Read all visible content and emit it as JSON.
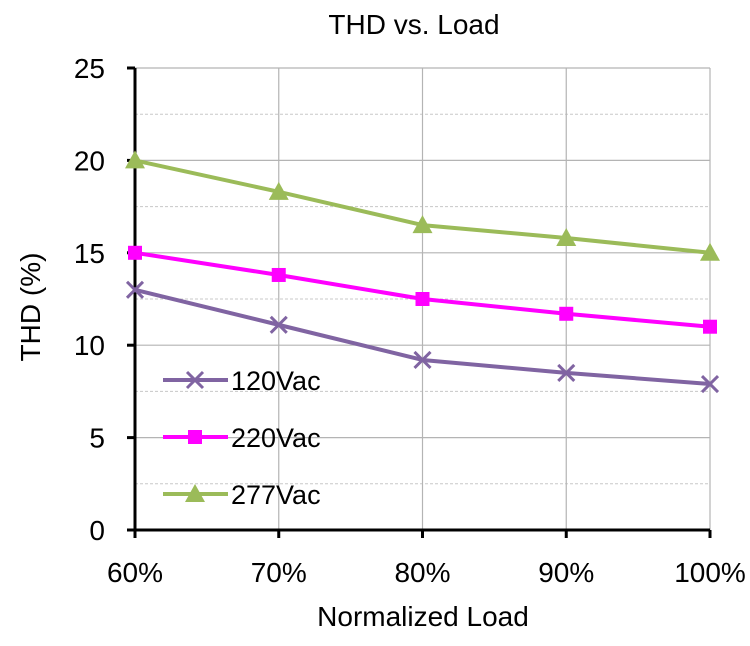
{
  "chart_data": {
    "type": "line",
    "title": "THD vs. Load",
    "xlabel": "Normalized Load",
    "ylabel": "THD (%)",
    "categories": [
      "60%",
      "70%",
      "80%",
      "90%",
      "100%"
    ],
    "ylim": [
      0,
      25
    ],
    "yticks": [
      0,
      5,
      10,
      15,
      20,
      25
    ],
    "grid": true,
    "legend_position": "lower-left",
    "series": [
      {
        "name": "120Vac",
        "color": "#8064A2",
        "marker": "x",
        "values": [
          13.0,
          11.1,
          9.2,
          8.5,
          7.9
        ]
      },
      {
        "name": "220Vac",
        "color": "#FF00FF",
        "marker": "square",
        "values": [
          15.0,
          13.8,
          12.5,
          11.7,
          11.0
        ]
      },
      {
        "name": "277Vac",
        "color": "#9BBB59",
        "marker": "triangle",
        "values": [
          20.0,
          18.3,
          16.5,
          15.8,
          15.0
        ]
      }
    ]
  }
}
